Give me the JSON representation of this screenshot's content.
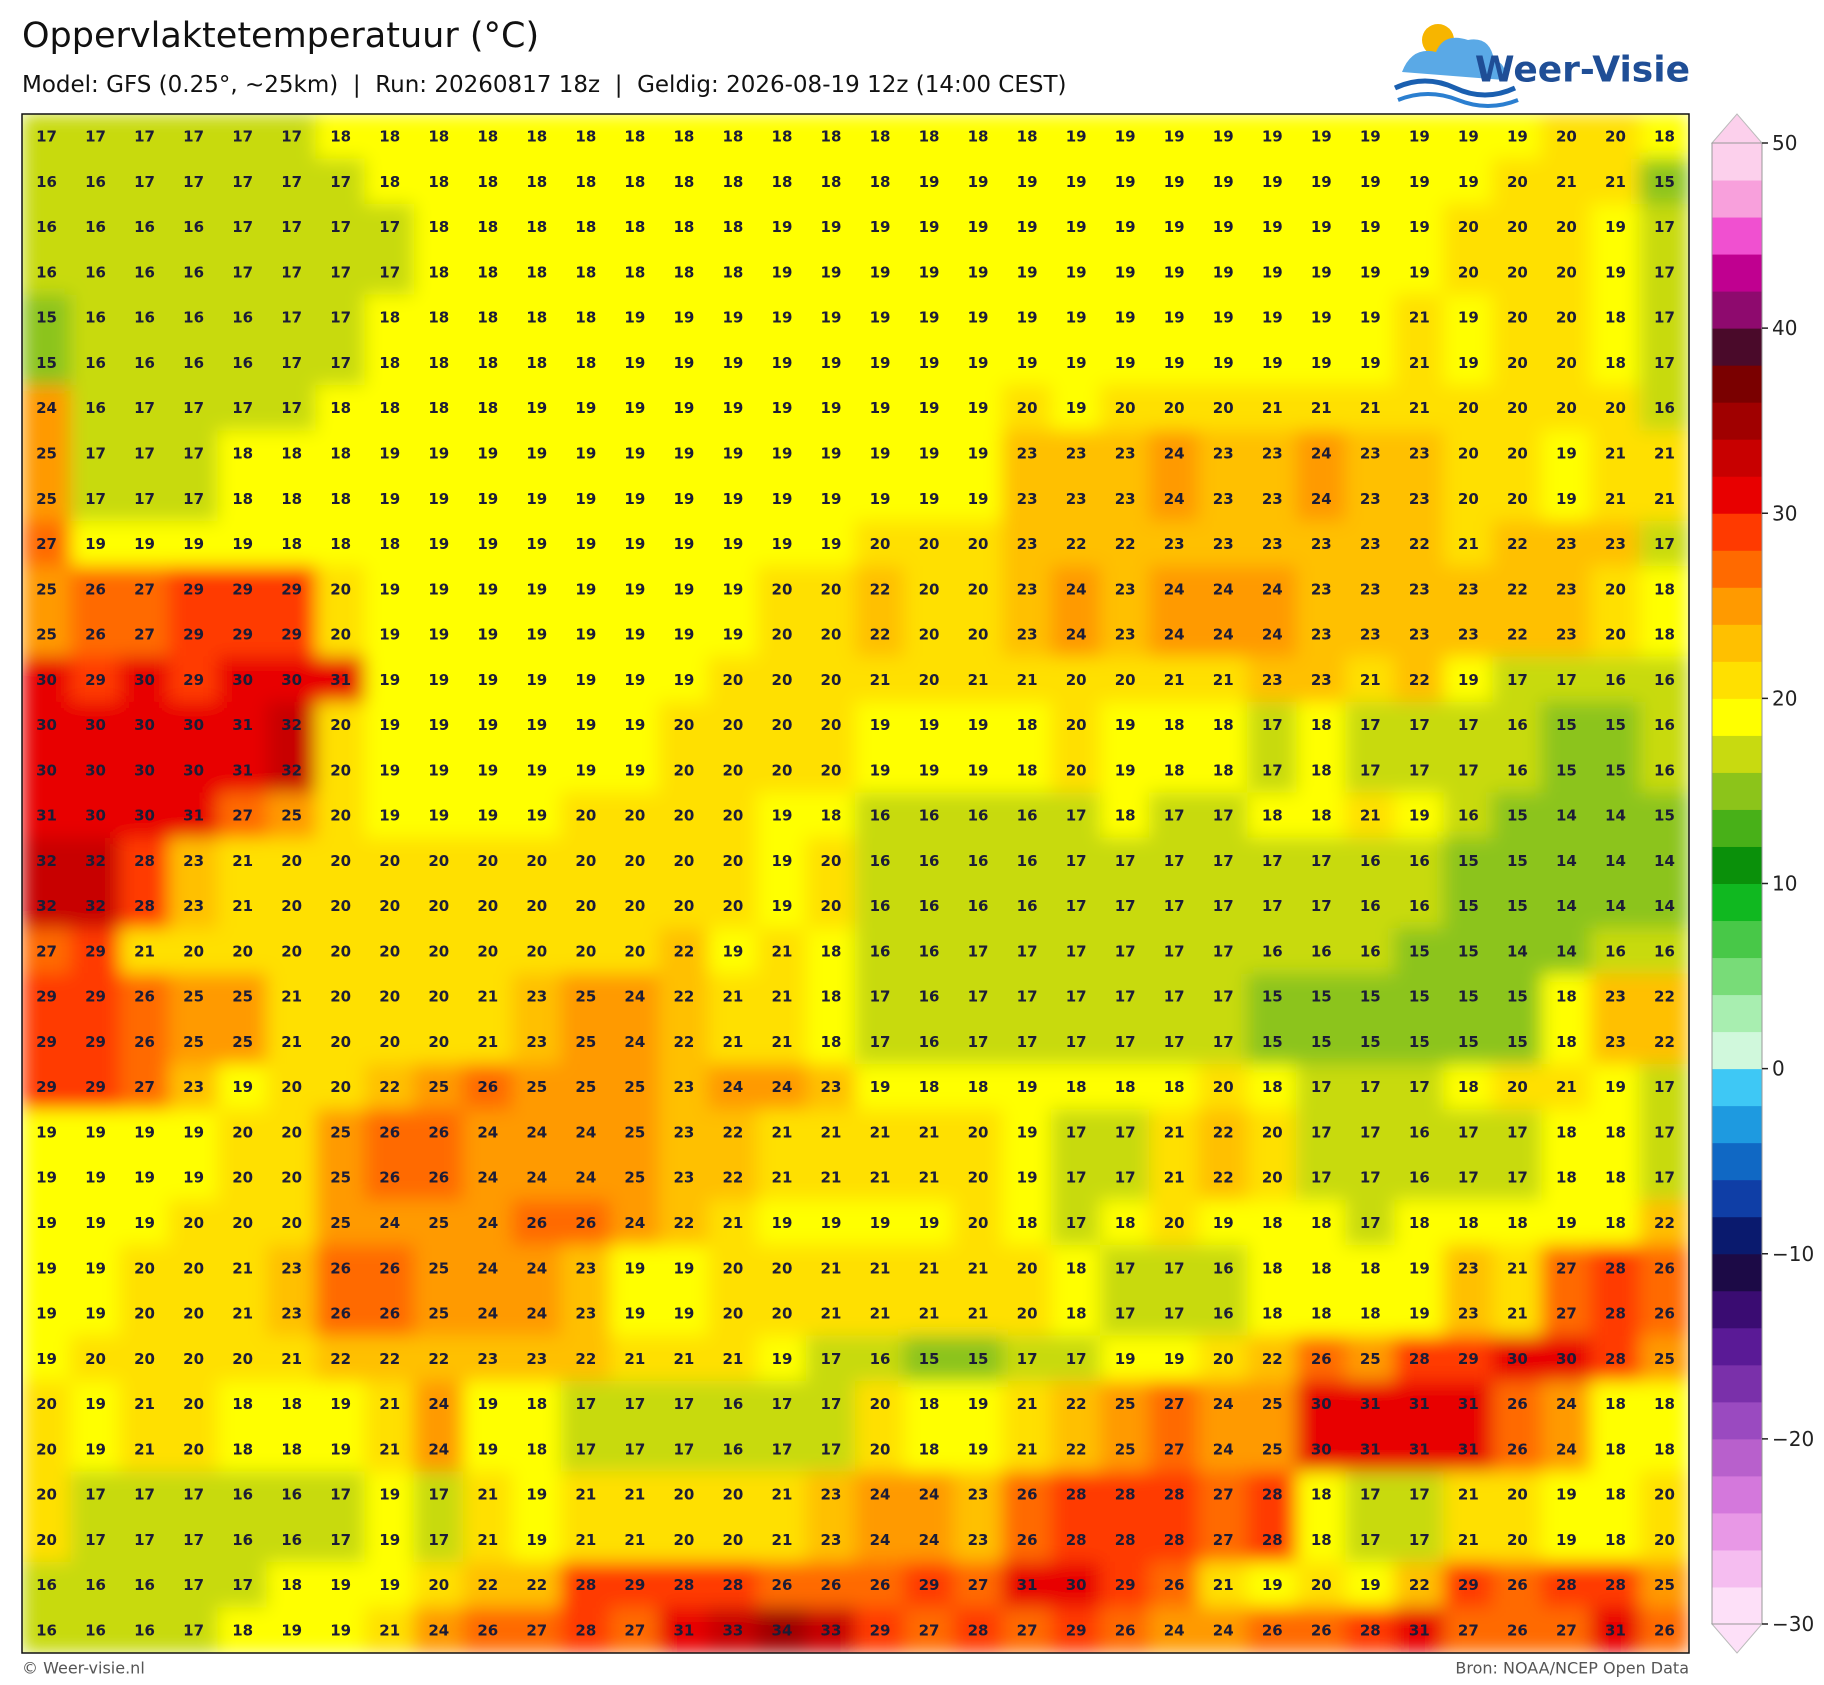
{
  "chart_data": {
    "type": "heatmap",
    "title": "Oppervlaktetemperatuur (°C)",
    "subtitle": "Model: GFS (0.25°, ~25km)  |  Run: 20260817 18z  |  Geldig: 2026-08-19 12z (14:00 CEST)",
    "logo": "Weer-Visie",
    "footer_left": "© Weer-visie.nl",
    "footer_right": "Bron: NOAA/NCEP Open Data",
    "values": [
      [
        17,
        17,
        17,
        17,
        17,
        17,
        18,
        18,
        18,
        18,
        18,
        18,
        18,
        18,
        18,
        18,
        18,
        18,
        18,
        18,
        18,
        19,
        19,
        19,
        19,
        19,
        19,
        19,
        19,
        19,
        19,
        20,
        20,
        18
      ],
      [
        16,
        16,
        17,
        17,
        17,
        17,
        17,
        18,
        18,
        18,
        18,
        18,
        18,
        18,
        18,
        18,
        18,
        18,
        19,
        19,
        19,
        19,
        19,
        19,
        19,
        19,
        19,
        19,
        19,
        19,
        20,
        21,
        21,
        15
      ],
      [
        16,
        16,
        16,
        16,
        17,
        17,
        17,
        17,
        18,
        18,
        18,
        18,
        18,
        18,
        18,
        19,
        19,
        19,
        19,
        19,
        19,
        19,
        19,
        19,
        19,
        19,
        19,
        19,
        19,
        20,
        20,
        20,
        19,
        17
      ],
      [
        16,
        16,
        16,
        16,
        17,
        17,
        17,
        17,
        18,
        18,
        18,
        18,
        18,
        18,
        18,
        19,
        19,
        19,
        19,
        19,
        19,
        19,
        19,
        19,
        19,
        19,
        19,
        19,
        19,
        20,
        20,
        20,
        19,
        17
      ],
      [
        15,
        16,
        16,
        16,
        16,
        17,
        17,
        18,
        18,
        18,
        18,
        18,
        19,
        19,
        19,
        19,
        19,
        19,
        19,
        19,
        19,
        19,
        19,
        19,
        19,
        19,
        19,
        19,
        21,
        19,
        20,
        20,
        18,
        17
      ],
      [
        15,
        16,
        16,
        16,
        16,
        17,
        17,
        18,
        18,
        18,
        18,
        18,
        19,
        19,
        19,
        19,
        19,
        19,
        19,
        19,
        19,
        19,
        19,
        19,
        19,
        19,
        19,
        19,
        21,
        19,
        20,
        20,
        18,
        17
      ],
      [
        24,
        16,
        17,
        17,
        17,
        17,
        18,
        18,
        18,
        18,
        19,
        19,
        19,
        19,
        19,
        19,
        19,
        19,
        19,
        19,
        20,
        19,
        20,
        20,
        20,
        21,
        21,
        21,
        21,
        20,
        20,
        20,
        20,
        16
      ],
      [
        25,
        17,
        17,
        17,
        18,
        18,
        18,
        19,
        19,
        19,
        19,
        19,
        19,
        19,
        19,
        19,
        19,
        19,
        19,
        19,
        23,
        23,
        23,
        24,
        23,
        23,
        24,
        23,
        23,
        20,
        20,
        19,
        21,
        21
      ],
      [
        25,
        17,
        17,
        17,
        18,
        18,
        18,
        19,
        19,
        19,
        19,
        19,
        19,
        19,
        19,
        19,
        19,
        19,
        19,
        19,
        23,
        23,
        23,
        24,
        23,
        23,
        24,
        23,
        23,
        20,
        20,
        19,
        21,
        21
      ],
      [
        27,
        19,
        19,
        19,
        19,
        18,
        18,
        18,
        19,
        19,
        19,
        19,
        19,
        19,
        19,
        19,
        19,
        20,
        20,
        20,
        23,
        22,
        22,
        23,
        23,
        23,
        23,
        23,
        22,
        21,
        22,
        23,
        23,
        17
      ],
      [
        25,
        26,
        27,
        29,
        29,
        29,
        20,
        19,
        19,
        19,
        19,
        19,
        19,
        19,
        19,
        20,
        20,
        22,
        20,
        20,
        23,
        24,
        23,
        24,
        24,
        24,
        23,
        23,
        23,
        23,
        22,
        23,
        20,
        18
      ],
      [
        25,
        26,
        27,
        29,
        29,
        29,
        20,
        19,
        19,
        19,
        19,
        19,
        19,
        19,
        19,
        20,
        20,
        22,
        20,
        20,
        23,
        24,
        23,
        24,
        24,
        24,
        23,
        23,
        23,
        23,
        22,
        23,
        20,
        18
      ],
      [
        30,
        29,
        30,
        29,
        30,
        30,
        31,
        19,
        19,
        19,
        19,
        19,
        19,
        19,
        20,
        20,
        20,
        21,
        20,
        21,
        21,
        20,
        20,
        21,
        21,
        23,
        23,
        21,
        22,
        19,
        17,
        17,
        16,
        16
      ],
      [
        30,
        30,
        30,
        30,
        31,
        32,
        20,
        19,
        19,
        19,
        19,
        19,
        19,
        20,
        20,
        20,
        20,
        19,
        19,
        19,
        18,
        20,
        19,
        18,
        18,
        17,
        18,
        17,
        17,
        17,
        16,
        15,
        15,
        16
      ],
      [
        30,
        30,
        30,
        30,
        31,
        32,
        20,
        19,
        19,
        19,
        19,
        19,
        19,
        20,
        20,
        20,
        20,
        19,
        19,
        19,
        18,
        20,
        19,
        18,
        18,
        17,
        18,
        17,
        17,
        17,
        16,
        15,
        15,
        16
      ],
      [
        31,
        30,
        30,
        31,
        27,
        25,
        20,
        19,
        19,
        19,
        19,
        20,
        20,
        20,
        20,
        19,
        18,
        16,
        16,
        16,
        16,
        17,
        18,
        17,
        17,
        18,
        18,
        21,
        19,
        16,
        15,
        14,
        14,
        15
      ],
      [
        32,
        32,
        28,
        23,
        21,
        20,
        20,
        20,
        20,
        20,
        20,
        20,
        20,
        20,
        20,
        19,
        20,
        16,
        16,
        16,
        16,
        17,
        17,
        17,
        17,
        17,
        17,
        16,
        16,
        15,
        15,
        14,
        14,
        14
      ],
      [
        32,
        32,
        28,
        23,
        21,
        20,
        20,
        20,
        20,
        20,
        20,
        20,
        20,
        20,
        20,
        19,
        20,
        16,
        16,
        16,
        16,
        17,
        17,
        17,
        17,
        17,
        17,
        16,
        16,
        15,
        15,
        14,
        14,
        14
      ],
      [
        27,
        29,
        21,
        20,
        20,
        20,
        20,
        20,
        20,
        20,
        20,
        20,
        20,
        22,
        19,
        21,
        18,
        16,
        16,
        17,
        17,
        17,
        17,
        17,
        17,
        16,
        16,
        16,
        15,
        15,
        14,
        14,
        16,
        16
      ],
      [
        29,
        29,
        26,
        25,
        25,
        21,
        20,
        20,
        20,
        21,
        23,
        25,
        24,
        22,
        21,
        21,
        18,
        17,
        16,
        17,
        17,
        17,
        17,
        17,
        17,
        15,
        15,
        15,
        15,
        15,
        15,
        18,
        23,
        22
      ],
      [
        29,
        29,
        26,
        25,
        25,
        21,
        20,
        20,
        20,
        21,
        23,
        25,
        24,
        22,
        21,
        21,
        18,
        17,
        16,
        17,
        17,
        17,
        17,
        17,
        17,
        15,
        15,
        15,
        15,
        15,
        15,
        18,
        23,
        22
      ],
      [
        29,
        29,
        27,
        23,
        19,
        20,
        20,
        22,
        25,
        26,
        25,
        25,
        25,
        23,
        24,
        24,
        23,
        19,
        18,
        18,
        19,
        18,
        18,
        18,
        20,
        18,
        17,
        17,
        17,
        18,
        20,
        21,
        19,
        17
      ],
      [
        19,
        19,
        19,
        19,
        20,
        20,
        25,
        26,
        26,
        24,
        24,
        24,
        25,
        23,
        22,
        21,
        21,
        21,
        21,
        20,
        19,
        17,
        17,
        21,
        22,
        20,
        17,
        17,
        16,
        17,
        17,
        18,
        18,
        17
      ],
      [
        19,
        19,
        19,
        19,
        20,
        20,
        25,
        26,
        26,
        24,
        24,
        24,
        25,
        23,
        22,
        21,
        21,
        21,
        21,
        20,
        19,
        17,
        17,
        21,
        22,
        20,
        17,
        17,
        16,
        17,
        17,
        18,
        18,
        17
      ],
      [
        19,
        19,
        19,
        20,
        20,
        20,
        25,
        24,
        25,
        24,
        26,
        26,
        24,
        22,
        21,
        19,
        19,
        19,
        19,
        20,
        18,
        17,
        18,
        20,
        19,
        18,
        18,
        17,
        18,
        18,
        18,
        19,
        18,
        22
      ],
      [
        19,
        19,
        20,
        20,
        21,
        23,
        26,
        26,
        25,
        24,
        24,
        23,
        19,
        19,
        20,
        20,
        21,
        21,
        21,
        21,
        20,
        18,
        17,
        17,
        16,
        18,
        18,
        18,
        19,
        23,
        21,
        27,
        28,
        26
      ],
      [
        19,
        19,
        20,
        20,
        21,
        23,
        26,
        26,
        25,
        24,
        24,
        23,
        19,
        19,
        20,
        20,
        21,
        21,
        21,
        21,
        20,
        18,
        17,
        17,
        16,
        18,
        18,
        18,
        19,
        23,
        21,
        27,
        28,
        26
      ],
      [
        19,
        20,
        20,
        20,
        20,
        21,
        22,
        22,
        22,
        23,
        23,
        22,
        21,
        21,
        21,
        19,
        17,
        16,
        15,
        15,
        17,
        17,
        19,
        19,
        20,
        22,
        26,
        25,
        28,
        29,
        30,
        30,
        28,
        25
      ],
      [
        20,
        19,
        21,
        20,
        18,
        18,
        19,
        21,
        24,
        19,
        18,
        17,
        17,
        17,
        16,
        17,
        17,
        20,
        18,
        19,
        21,
        22,
        25,
        27,
        24,
        25,
        30,
        31,
        31,
        31,
        26,
        24,
        18,
        18
      ],
      [
        20,
        19,
        21,
        20,
        18,
        18,
        19,
        21,
        24,
        19,
        18,
        17,
        17,
        17,
        16,
        17,
        17,
        20,
        18,
        19,
        21,
        22,
        25,
        27,
        24,
        25,
        30,
        31,
        31,
        31,
        26,
        24,
        18,
        18
      ],
      [
        20,
        17,
        17,
        17,
        16,
        16,
        17,
        19,
        17,
        21,
        19,
        21,
        21,
        20,
        20,
        21,
        23,
        24,
        24,
        23,
        26,
        28,
        28,
        28,
        27,
        28,
        18,
        17,
        17,
        21,
        20,
        19,
        18,
        20
      ],
      [
        20,
        17,
        17,
        17,
        16,
        16,
        17,
        19,
        17,
        21,
        19,
        21,
        21,
        20,
        20,
        21,
        23,
        24,
        24,
        23,
        26,
        28,
        28,
        28,
        27,
        28,
        18,
        17,
        17,
        21,
        20,
        19,
        18,
        20
      ],
      [
        16,
        16,
        16,
        17,
        17,
        18,
        19,
        19,
        20,
        22,
        22,
        28,
        29,
        28,
        28,
        26,
        26,
        26,
        29,
        27,
        31,
        30,
        29,
        26,
        21,
        19,
        20,
        19,
        22,
        29,
        26,
        28,
        28,
        25
      ],
      [
        16,
        16,
        16,
        17,
        18,
        19,
        19,
        21,
        24,
        26,
        27,
        28,
        27,
        31,
        33,
        34,
        33,
        29,
        27,
        28,
        27,
        29,
        26,
        24,
        24,
        26,
        26,
        28,
        31,
        27,
        26,
        27,
        31,
        26
      ]
    ],
    "colorbar": {
      "lim": [
        -30,
        50
      ],
      "ticks": [
        50,
        40,
        30,
        20,
        10,
        0,
        {
          "value": -10,
          "label": "−10"
        },
        {
          "value": -20,
          "label": "−20"
        },
        {
          "value": -30,
          "label": "−30"
        }
      ],
      "colors": [
        "#fde0f8",
        "#f5bdf0",
        "#e898e6",
        "#d478dc",
        "#b860cc",
        "#9a4ac0",
        "#7a30aa",
        "#5a1a96",
        "#3a0c72",
        "#1c0a46",
        "#0a1a6e",
        "#0f3ea6",
        "#1068c4",
        "#1e9ae0",
        "#3ec8f5",
        "#d0f8dc",
        "#a8eeb0",
        "#78dc78",
        "#48c848",
        "#10b820",
        "#0a900a",
        "#48b018",
        "#8cc41a",
        "#c8da10",
        "#ffff00",
        "#ffe000",
        "#ffc000",
        "#ff9a00",
        "#ff6a00",
        "#ff3a00",
        "#e80000",
        "#c80000",
        "#a00000",
        "#7a0000",
        "#4a0a2a",
        "#8e0a6e",
        "#c00090",
        "#f050d0",
        "#f8a0dc",
        "#fcd0ec"
      ]
    }
  }
}
